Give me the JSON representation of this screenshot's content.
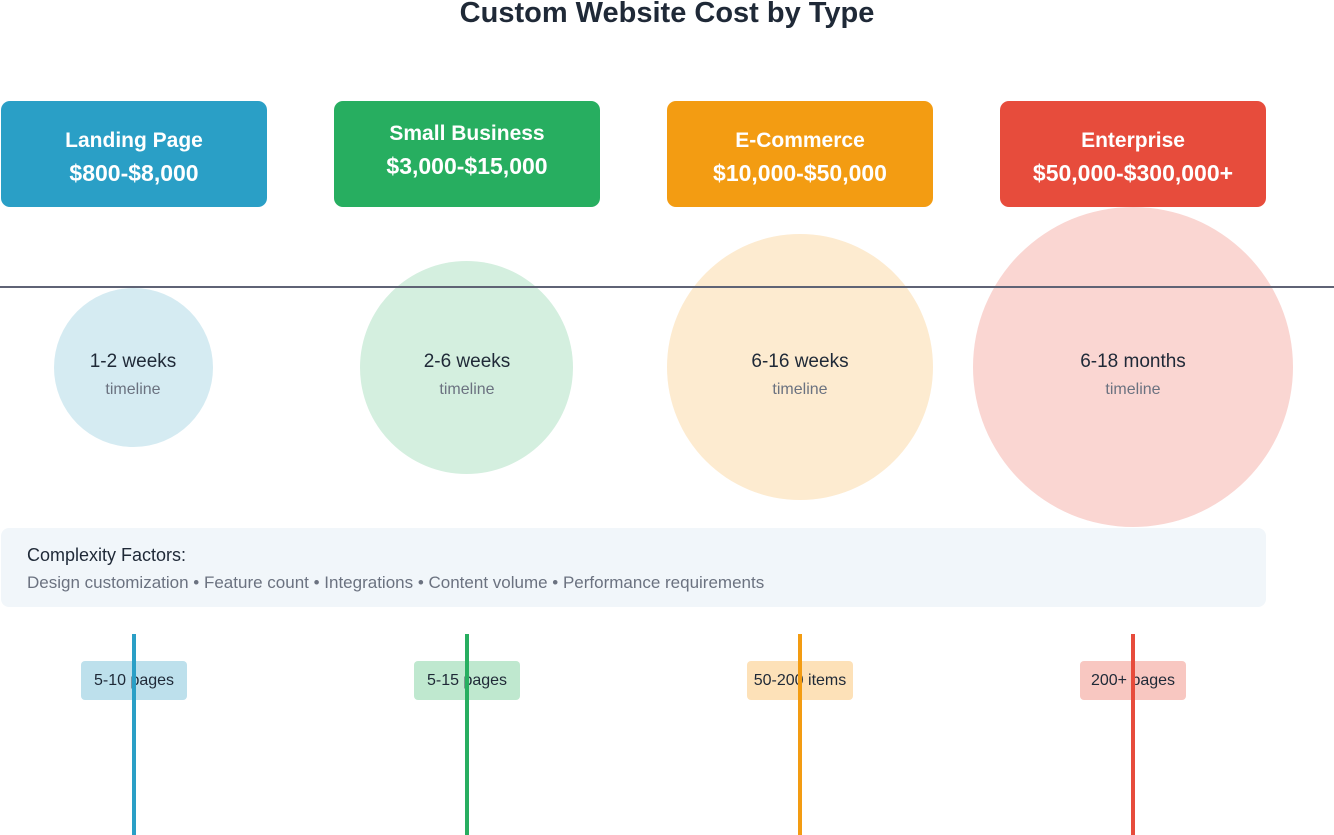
{
  "title": "Custom Website Cost by Type",
  "types": [
    {
      "name": "Landing Page",
      "price": "$800-$8,000",
      "timeline": "1-2 weeks",
      "timeline_label": "timeline",
      "scope": "5-10 pages",
      "color": "#2a9fc6",
      "light": "#d5ebf2",
      "tag": "#bde0ec"
    },
    {
      "name": "Small Business",
      "price": "$3,000-$15,000",
      "timeline": "2-6 weeks",
      "timeline_label": "timeline",
      "scope": "5-15 pages",
      "color": "#27ae60",
      "light": "#d4efdf",
      "tag": "#bfe8cf"
    },
    {
      "name": "E-Commerce",
      "price": "$10,000-$50,000",
      "timeline": "6-16 weeks",
      "timeline_label": "timeline",
      "scope": "50-200 items",
      "color": "#f39c12",
      "light": "#fdebd0",
      "tag": "#fde1b8"
    },
    {
      "name": "Enterprise",
      "price": "$50,000-$300,000+",
      "timeline": "6-18 months",
      "timeline_label": "timeline",
      "scope": "200+ pages",
      "color": "#e74c3c",
      "light": "#fad6d2",
      "tag": "#f8c7c1"
    }
  ],
  "factors": {
    "title": "Complexity Factors:",
    "list": "Design customization • Feature count • Integrations • Content volume • Performance requirements"
  }
}
